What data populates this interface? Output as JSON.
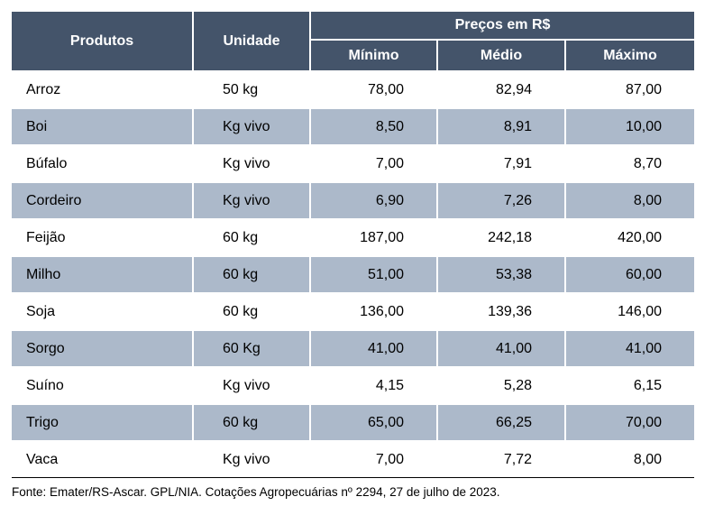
{
  "table": {
    "headers": {
      "product": "Produtos",
      "unit": "Unidade",
      "prices_group": "Preços em R$",
      "min": "Mínimo",
      "avg": "Médio",
      "max": "Máximo"
    },
    "rows": [
      {
        "product": "Arroz",
        "unit": "50 kg",
        "min": "78,00",
        "avg": "82,94",
        "max": "87,00"
      },
      {
        "product": "Boi",
        "unit": "Kg vivo",
        "min": "8,50",
        "avg": "8,91",
        "max": "10,00"
      },
      {
        "product": "Búfalo",
        "unit": "Kg vivo",
        "min": "7,00",
        "avg": "7,91",
        "max": "8,70"
      },
      {
        "product": "Cordeiro",
        "unit": "Kg vivo",
        "min": "6,90",
        "avg": "7,26",
        "max": "8,00"
      },
      {
        "product": "Feijão",
        "unit": "60 kg",
        "min": "187,00",
        "avg": "242,18",
        "max": "420,00"
      },
      {
        "product": "Milho",
        "unit": "60 kg",
        "min": "51,00",
        "avg": "53,38",
        "max": "60,00"
      },
      {
        "product": "Soja",
        "unit": "60 kg",
        "min": "136,00",
        "avg": "139,36",
        "max": "146,00"
      },
      {
        "product": "Sorgo",
        "unit": "60 Kg",
        "min": "41,00",
        "avg": "41,00",
        "max": "41,00"
      },
      {
        "product": "Suíno",
        "unit": "Kg vivo",
        "min": "4,15",
        "avg": "5,28",
        "max": "6,15"
      },
      {
        "product": "Trigo",
        "unit": "60 kg",
        "min": "65,00",
        "avg": "66,25",
        "max": "70,00"
      },
      {
        "product": "Vaca",
        "unit": "Kg vivo",
        "min": "7,00",
        "avg": "7,72",
        "max": "8,00"
      }
    ]
  },
  "source": "Fonte: Emater/RS-Ascar. GPL/NIA. Cotações Agropecuárias nº 2294, 27 de julho de 2023.",
  "colors": {
    "header_bg": "#44546a",
    "header_text": "#ffffff",
    "shaded_row": "#acb9ca"
  }
}
